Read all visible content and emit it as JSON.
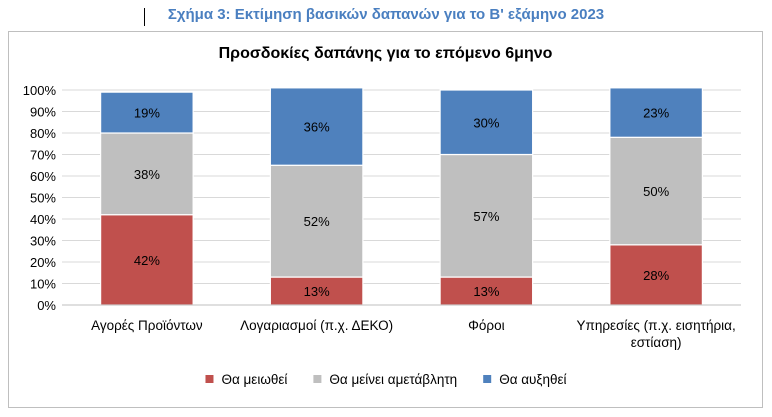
{
  "caption": "Σχήμα 3: Εκτίμηση βασικών δαπανών για το Β' εξάμηνο 2023",
  "chart_data": {
    "type": "bar",
    "stacked": true,
    "percent": true,
    "title": "Προσδοκίες δαπάνης για το επόμενο 6μηνο",
    "categories": [
      [
        "Αγορές Προϊόντων"
      ],
      [
        "Λογαριασμοί (π.χ. ΔΕΚΟ)"
      ],
      [
        "Φόροι"
      ],
      [
        "Υπηρεσίες (π.χ. εισητήρια,",
        "εστίαση)"
      ]
    ],
    "series": [
      {
        "name": "Θα μειωθεί",
        "values": [
          42,
          13,
          13,
          28
        ],
        "color": "#c0504d"
      },
      {
        "name": "Θα μείνει αμετάβλητη",
        "values": [
          38,
          52,
          57,
          50
        ],
        "color": "#bfbfbf"
      },
      {
        "name": "Θα αυξηθεί",
        "values": [
          19,
          36,
          30,
          23
        ],
        "color": "#4f81bd"
      }
    ],
    "ylim": [
      0,
      100
    ],
    "yticks": [
      "0%",
      "10%",
      "20%",
      "30%",
      "40%",
      "50%",
      "60%",
      "70%",
      "80%",
      "90%",
      "100%"
    ],
    "grid": true,
    "legend": "bottom"
  }
}
